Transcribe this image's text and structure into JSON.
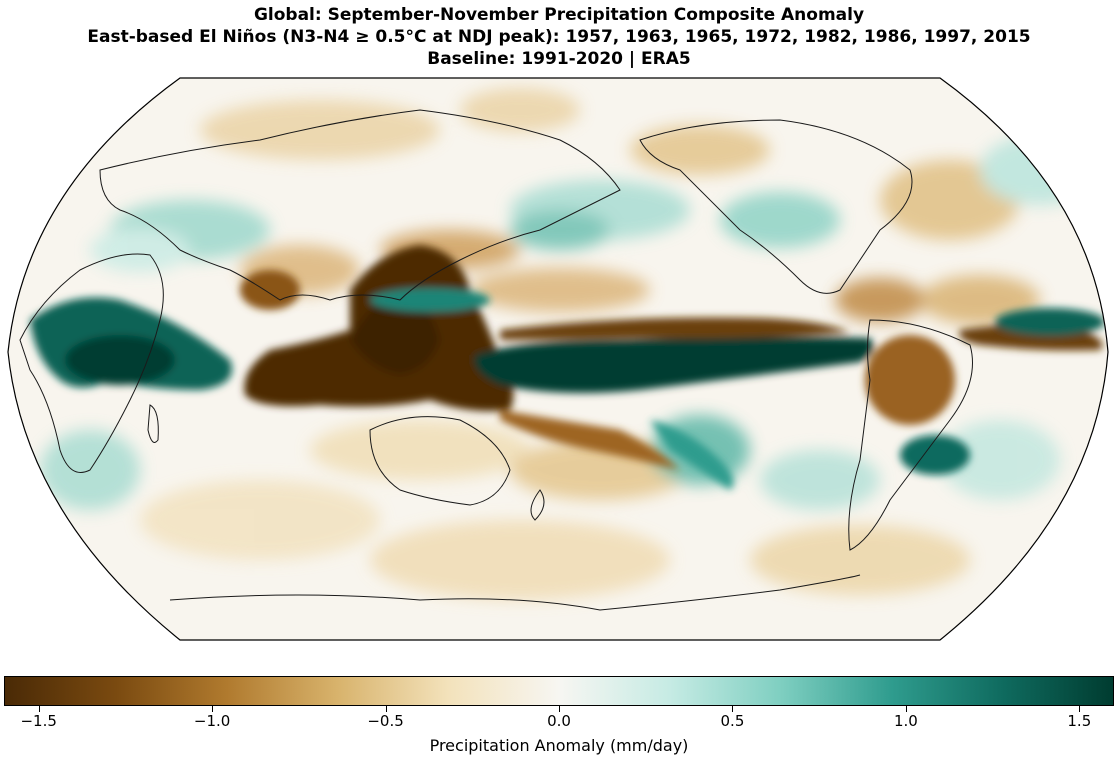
{
  "title": {
    "line1": "Global: September-November Precipitation Composite Anomaly",
    "line2": "East-based El Niños (N3-N4 ≥ 0.5°C at NDJ peak): 1957, 1963, 1965, 1972, 1982, 1986, 1997, 2015",
    "line3": "Baseline: 1991-2020 | ERA5"
  },
  "colorbar": {
    "label": "Precipitation Anomaly (mm/day)",
    "ticks": [
      -1.5,
      -1.0,
      -0.5,
      0.0,
      0.5,
      1.0,
      1.5
    ],
    "tick_labels": [
      "−1.5",
      "−1.0",
      "−0.5",
      "0.0",
      "0.5",
      "1.0",
      "1.5"
    ],
    "vmin": -1.6,
    "vmax": 1.6,
    "colors": [
      "#4a2a06",
      "#7a4a10",
      "#b07a2e",
      "#d8b36c",
      "#f3e2bb",
      "#f7f6f2",
      "#c6ebe4",
      "#7fcfc1",
      "#2f9c8e",
      "#0f6b5f",
      "#003c30"
    ]
  },
  "chart_data": {
    "type": "heatmap",
    "projection": "Robinson (Pacific-centered)",
    "variable": "Precipitation Anomaly (mm/day)",
    "range": [
      -1.6,
      1.6
    ],
    "notable_anomalies": [
      {
        "region": "Central-eastern equatorial Pacific",
        "sign": "wet",
        "approx_value": 1.6
      },
      {
        "region": "Maritime Continent / western Pacific",
        "sign": "dry",
        "approx_value": -1.6
      },
      {
        "region": "East Africa / western Indian Ocean",
        "sign": "wet",
        "approx_value": 1.2
      },
      {
        "region": "Northern South America",
        "sign": "dry",
        "approx_value": -1.0
      },
      {
        "region": "Intertropical Atlantic (ITCZ)",
        "sign": "dry",
        "approx_value": -1.2
      },
      {
        "region": "Southeastern South America",
        "sign": "wet",
        "approx_value": 1.0
      }
    ]
  }
}
